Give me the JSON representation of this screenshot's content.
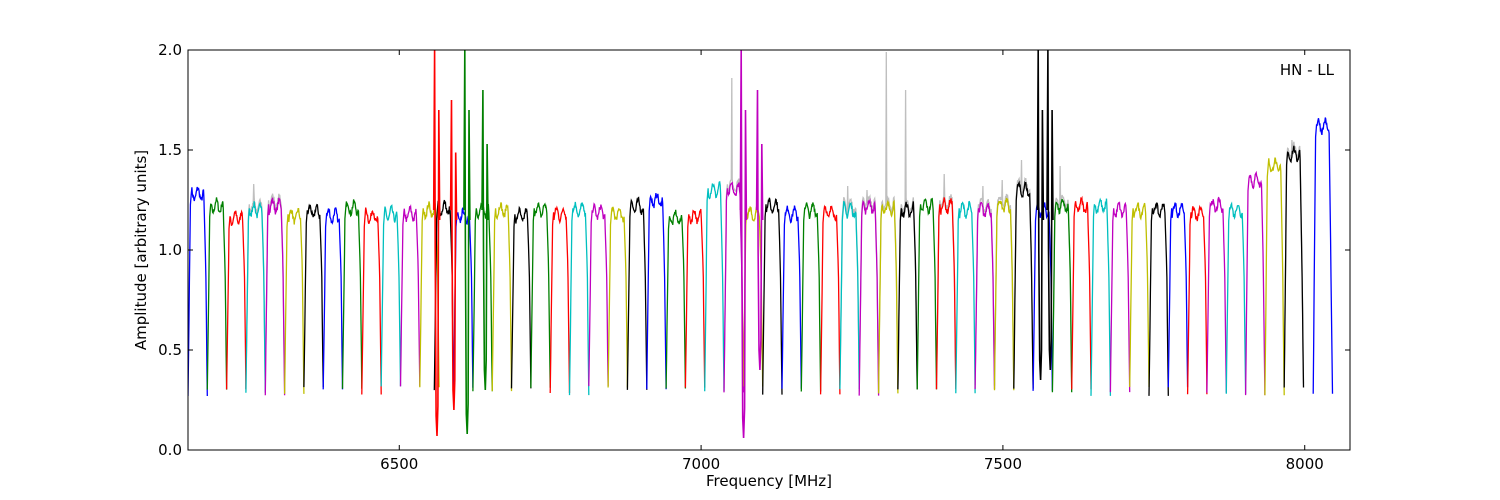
{
  "chart_data": {
    "type": "line",
    "xlabel": "Frequency [MHz]",
    "ylabel": "Amplitude [arbitrary units]",
    "xlim": [
      6150,
      8075
    ],
    "ylim": [
      0.0,
      2.0
    ],
    "x_ticks": [
      6500,
      7000,
      7500,
      8000
    ],
    "x_tick_labels": [
      "6500",
      "7000",
      "7500",
      "8000"
    ],
    "y_ticks": [
      0.0,
      0.5,
      1.0,
      1.5,
      2.0
    ],
    "y_tick_labels": [
      "0.0",
      "0.5",
      "1.0",
      "1.5",
      "2.0"
    ],
    "grid": false,
    "annotation": "HN - LL",
    "annotation_position": "top-right",
    "color_cycle": [
      "#0000ff",
      "#008000",
      "#ff0000",
      "#00bfbf",
      "#bf00bf",
      "#bfbf00",
      "#000000"
    ],
    "reference_color": "#bfbfbf",
    "channel_width_mhz": 32,
    "channels": [
      {
        "start": 6150,
        "level": 1.28,
        "color": "#0000ff"
      },
      {
        "start": 6182,
        "level": 1.22,
        "color": "#008000"
      },
      {
        "start": 6214,
        "level": 1.16,
        "color": "#ff0000"
      },
      {
        "start": 6246,
        "level": 1.2,
        "color": "#00bfbf",
        "ref_peak": 1.33
      },
      {
        "start": 6278,
        "level": 1.22,
        "color": "#bf00bf",
        "ref_peak": 1.27
      },
      {
        "start": 6310,
        "level": 1.17,
        "color": "#bfbf00"
      },
      {
        "start": 6342,
        "level": 1.19,
        "color": "#000000"
      },
      {
        "start": 6374,
        "level": 1.17,
        "color": "#0000ff"
      },
      {
        "start": 6406,
        "level": 1.21,
        "color": "#008000"
      },
      {
        "start": 6438,
        "level": 1.17,
        "color": "#ff0000"
      },
      {
        "start": 6470,
        "level": 1.18,
        "color": "#00bfbf"
      },
      {
        "start": 6502,
        "level": 1.18,
        "color": "#bf00bf"
      },
      {
        "start": 6534,
        "level": 1.2,
        "color": "#bfbf00"
      },
      {
        "start": 6558,
        "level": 1.21,
        "color": "#000000"
      },
      {
        "start": 6590,
        "level": 1.17,
        "color": "#0000ff"
      },
      {
        "start": 6622,
        "level": 1.2,
        "color": "#008000"
      },
      {
        "start": 6654,
        "level": 1.2,
        "color": "#bfbf00"
      },
      {
        "start": 6686,
        "level": 1.17,
        "color": "#000000"
      },
      {
        "start": 6718,
        "level": 1.2,
        "color": "#008000"
      },
      {
        "start": 6750,
        "level": 1.18,
        "color": "#ff0000"
      },
      {
        "start": 6782,
        "level": 1.2,
        "color": "#00bfbf"
      },
      {
        "start": 6814,
        "level": 1.19,
        "color": "#bf00bf"
      },
      {
        "start": 6846,
        "level": 1.18,
        "color": "#bfbf00"
      },
      {
        "start": 6878,
        "level": 1.22,
        "color": "#000000"
      },
      {
        "start": 6910,
        "level": 1.25,
        "color": "#0000ff"
      },
      {
        "start": 6942,
        "level": 1.16,
        "color": "#008000"
      },
      {
        "start": 6974,
        "level": 1.17,
        "color": "#ff0000"
      },
      {
        "start": 7006,
        "level": 1.3,
        "color": "#00bfbf"
      },
      {
        "start": 7038,
        "level": 1.3,
        "color": "#bf00bf",
        "ref_peak": 1.86
      },
      {
        "start": 7070,
        "level": 1.18,
        "color": "#bfbf00"
      },
      {
        "start": 7102,
        "level": 1.22,
        "color": "#000000"
      },
      {
        "start": 7134,
        "level": 1.18,
        "color": "#0000ff"
      },
      {
        "start": 7166,
        "level": 1.2,
        "color": "#008000"
      },
      {
        "start": 7198,
        "level": 1.19,
        "color": "#ff0000"
      },
      {
        "start": 7230,
        "level": 1.2,
        "color": "#00bfbf",
        "ref_peak": 1.32
      },
      {
        "start": 7262,
        "level": 1.22,
        "color": "#bf00bf",
        "ref_peak": 1.3
      },
      {
        "start": 7294,
        "level": 1.21,
        "color": "#bfbf00",
        "ref_peak": 1.99
      },
      {
        "start": 7326,
        "level": 1.2,
        "color": "#000000",
        "ref_peak": 1.8
      },
      {
        "start": 7358,
        "level": 1.22,
        "color": "#008000"
      },
      {
        "start": 7390,
        "level": 1.22,
        "color": "#ff0000",
        "ref_peak": 1.38
      },
      {
        "start": 7422,
        "level": 1.2,
        "color": "#00bfbf"
      },
      {
        "start": 7454,
        "level": 1.2,
        "color": "#bf00bf",
        "ref_peak": 1.32
      },
      {
        "start": 7486,
        "level": 1.22,
        "color": "#bfbf00",
        "ref_peak": 1.35
      },
      {
        "start": 7518,
        "level": 1.3,
        "color": "#000000",
        "ref_peak": 1.45
      },
      {
        "start": 7550,
        "level": 1.2,
        "color": "#0000ff"
      },
      {
        "start": 7582,
        "level": 1.22,
        "color": "#008000",
        "ref_peak": 1.42
      },
      {
        "start": 7614,
        "level": 1.22,
        "color": "#ff0000"
      },
      {
        "start": 7646,
        "level": 1.22,
        "color": "#00bfbf"
      },
      {
        "start": 7678,
        "level": 1.2,
        "color": "#bf00bf"
      },
      {
        "start": 7710,
        "level": 1.2,
        "color": "#bfbf00"
      },
      {
        "start": 7742,
        "level": 1.2,
        "color": "#000000"
      },
      {
        "start": 7774,
        "level": 1.2,
        "color": "#0000ff"
      },
      {
        "start": 7806,
        "level": 1.18,
        "color": "#ff0000"
      },
      {
        "start": 7838,
        "level": 1.22,
        "color": "#bf00bf"
      },
      {
        "start": 7870,
        "level": 1.2,
        "color": "#00bfbf"
      },
      {
        "start": 7902,
        "level": 1.35,
        "color": "#bf00bf"
      },
      {
        "start": 7934,
        "level": 1.42,
        "color": "#bfbf00"
      },
      {
        "start": 7966,
        "level": 1.48,
        "color": "#000000",
        "ref_peak": 1.55
      },
      {
        "start": 8014,
        "level": 1.62,
        "color": "#0000ff"
      }
    ],
    "rfi_spikes": [
      {
        "x": 6560,
        "color": "#ff0000",
        "peak": 2.0,
        "trough": 0.07
      },
      {
        "x": 6588,
        "color": "#ff0000",
        "peak": 1.75,
        "trough": 0.2
      },
      {
        "x": 6610,
        "color": "#008000",
        "peak": 2.0,
        "trough": 0.08
      },
      {
        "x": 6640,
        "color": "#008000",
        "peak": 1.8,
        "trough": 0.3
      },
      {
        "x": 7068,
        "color": "#bf00bf",
        "peak": 2.0,
        "trough": 0.06
      },
      {
        "x": 7095,
        "color": "#bf00bf",
        "peak": 1.8,
        "trough": 0.4
      },
      {
        "x": 7560,
        "color": "#000000",
        "peak": 2.0,
        "trough": 0.35
      },
      {
        "x": 7576,
        "color": "#000000",
        "peak": 2.0,
        "trough": 0.4
      }
    ]
  }
}
